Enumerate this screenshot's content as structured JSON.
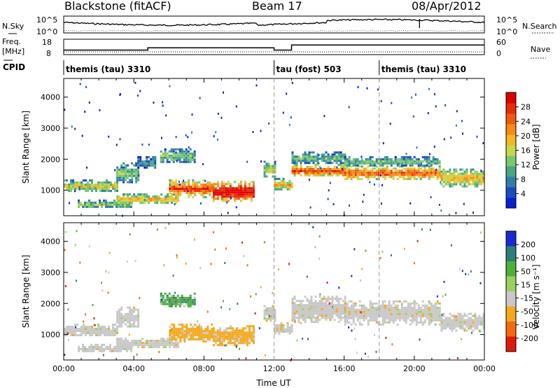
{
  "header": {
    "station": "Blackstone (fitACF)",
    "beam": "Beam 17",
    "date": "08/Apr/2012"
  },
  "top_panels": {
    "nsky_label": "N.Sky",
    "nsky_ticks": [
      "10^5",
      "10^0"
    ],
    "nsearch_label": "N.Search",
    "nsearch_ticks": [
      "10^5",
      "10^0"
    ],
    "freq_label": "Freq.",
    "freq_unit": "[MHz]",
    "freq_ticks": [
      "18",
      "8"
    ],
    "nave_label": "Nave",
    "nave_ticks": [
      "60",
      "0"
    ],
    "cpid_label": "CPID",
    "cpid_segments": [
      {
        "label": "themis (tau) 3310",
        "start_hour": 0
      },
      {
        "label": "tau (fost) 503",
        "start_hour": 12
      },
      {
        "label": "themis (tau) 3310",
        "start_hour": 18
      }
    ],
    "freq_steps": [
      {
        "from": 0.0,
        "to": 4.8,
        "mhz": 10.5
      },
      {
        "from": 4.8,
        "to": 12.0,
        "mhz": 12.3
      },
      {
        "from": 12.0,
        "to": 13.0,
        "mhz": 10.5
      },
      {
        "from": 13.0,
        "to": 24.0,
        "mhz": 14.5
      }
    ]
  },
  "chart_data": [
    {
      "type": "heatmap",
      "title": "",
      "ylabel": "Slant Range [km]",
      "xlabel": "",
      "xlim": [
        0,
        24
      ],
      "ylim": [
        180,
        4600
      ],
      "yticks": [
        "1000",
        "2000",
        "3000",
        "4000"
      ],
      "colorbar": {
        "label": "Power [dB]",
        "ticks": [
          "4",
          "8",
          "12",
          "16",
          "20",
          "24",
          "28"
        ],
        "colors": [
          "#0a1ed8",
          "#1a4ac0",
          "#2f7da8",
          "#4aa585",
          "#7cc870",
          "#c8d84a",
          "#f5b624",
          "#f58a14",
          "#f05a0c",
          "#e82a08",
          "#e00000"
        ]
      },
      "vlines_hours": [
        12,
        18
      ],
      "regions": [
        {
          "t0": 0.0,
          "t1": 3.0,
          "r0": 950,
          "r1": 1350,
          "level": 0.48
        },
        {
          "t0": 3.0,
          "t1": 4.2,
          "r0": 1250,
          "r1": 1900,
          "level": 0.35
        },
        {
          "t0": 4.2,
          "t1": 5.2,
          "r0": 1700,
          "r1": 2100,
          "level": 0.25
        },
        {
          "t0": 0.8,
          "t1": 3.8,
          "r0": 450,
          "r1": 700,
          "level": 0.4
        },
        {
          "t0": 3.0,
          "t1": 6.5,
          "r0": 580,
          "r1": 900,
          "level": 0.55
        },
        {
          "t0": 5.5,
          "t1": 7.5,
          "r0": 1900,
          "r1": 2350,
          "level": 0.35
        },
        {
          "t0": 6.0,
          "t1": 8.5,
          "r0": 800,
          "r1": 1350,
          "level": 0.75
        },
        {
          "t0": 8.5,
          "t1": 10.8,
          "r0": 650,
          "r1": 1300,
          "level": 0.92
        },
        {
          "t0": 11.4,
          "t1": 12.0,
          "r0": 1450,
          "r1": 1950,
          "level": 0.45
        },
        {
          "t0": 12.0,
          "t1": 13.0,
          "r0": 1000,
          "r1": 1400,
          "level": 0.55
        },
        {
          "t0": 13.0,
          "t1": 16.0,
          "r0": 1450,
          "r1": 1850,
          "level": 0.72
        },
        {
          "t0": 13.0,
          "t1": 16.0,
          "r0": 1850,
          "r1": 2250,
          "level": 0.32
        },
        {
          "t0": 16.0,
          "t1": 21.5,
          "r0": 1350,
          "r1": 1800,
          "level": 0.7
        },
        {
          "t0": 16.0,
          "t1": 21.5,
          "r0": 1800,
          "r1": 2100,
          "level": 0.35
        },
        {
          "t0": 21.5,
          "t1": 24.0,
          "r0": 1150,
          "r1": 1700,
          "level": 0.55
        }
      ]
    },
    {
      "type": "heatmap",
      "title": "",
      "ylabel": "Slant Range [km]",
      "xlabel": "Time UT",
      "xlim": [
        0,
        24
      ],
      "ylim": [
        180,
        4600
      ],
      "xticks": [
        "00:00",
        "04:00",
        "08:00",
        "12:00",
        "16:00",
        "20:00",
        "00:00"
      ],
      "yticks": [
        "1000",
        "2000",
        "3000",
        "4000"
      ],
      "colorbar": {
        "label": "Velocity [m s⁻¹]",
        "ticks": [
          "200",
          "100",
          "50",
          "15",
          "-15",
          "-50",
          "-100",
          "-200"
        ],
        "colors": [
          "#1a2ad0",
          "#2d7e74",
          "#4fae3c",
          "#9ad060",
          "#c8c8c8",
          "#f5a81c",
          "#f56a10",
          "#e01a0a"
        ]
      },
      "vlines_hours": [
        12,
        18
      ],
      "regions": [
        {
          "t0": 0.0,
          "t1": 3.0,
          "r0": 950,
          "r1": 1350,
          "cls": "gray"
        },
        {
          "t0": 3.0,
          "t1": 4.2,
          "r0": 1250,
          "r1": 1900,
          "cls": "gray"
        },
        {
          "t0": 0.8,
          "t1": 3.8,
          "r0": 450,
          "r1": 700,
          "cls": "gray"
        },
        {
          "t0": 3.0,
          "t1": 6.5,
          "r0": 580,
          "r1": 900,
          "cls": "gray"
        },
        {
          "t0": 5.5,
          "t1": 7.5,
          "r0": 1900,
          "r1": 2350,
          "cls": "green"
        },
        {
          "t0": 6.0,
          "t1": 8.5,
          "r0": 800,
          "r1": 1350,
          "cls": "orange"
        },
        {
          "t0": 8.5,
          "t1": 10.8,
          "r0": 650,
          "r1": 1300,
          "cls": "orange"
        },
        {
          "t0": 11.4,
          "t1": 12.0,
          "r0": 1450,
          "r1": 1950,
          "cls": "gray"
        },
        {
          "t0": 12.0,
          "t1": 13.0,
          "r0": 1000,
          "r1": 1400,
          "cls": "gray"
        },
        {
          "t0": 13.0,
          "t1": 16.0,
          "r0": 1400,
          "r1": 2250,
          "cls": "gray"
        },
        {
          "t0": 16.0,
          "t1": 21.5,
          "r0": 1350,
          "r1": 2100,
          "cls": "gray"
        },
        {
          "t0": 21.5,
          "t1": 24.0,
          "r0": 1150,
          "r1": 1700,
          "cls": "gray"
        }
      ]
    }
  ]
}
